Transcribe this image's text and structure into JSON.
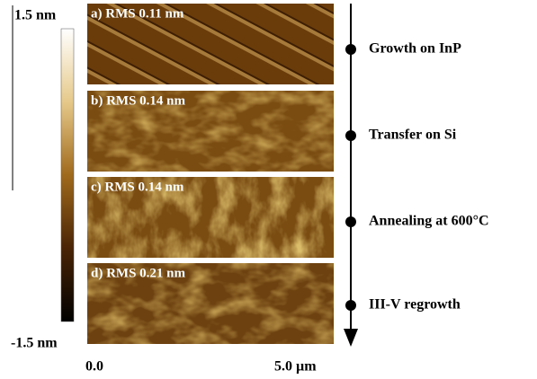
{
  "colorbar": {
    "max_label": "1.5 nm",
    "min_label": "-1.5 nm"
  },
  "panels": [
    {
      "label": "a) RMS 0.11 nm"
    },
    {
      "label": "b) RMS 0.14 nm"
    },
    {
      "label": "c) RMS 0.14 nm"
    },
    {
      "label": "d) RMS 0.21 nm"
    }
  ],
  "x_axis": {
    "start_label": "0.0",
    "end_label": "5.0 µm"
  },
  "timeline": {
    "steps": [
      "Growth on InP",
      "Transfer on Si",
      "Annealing at 600°C",
      "III-V regrowth"
    ]
  }
}
